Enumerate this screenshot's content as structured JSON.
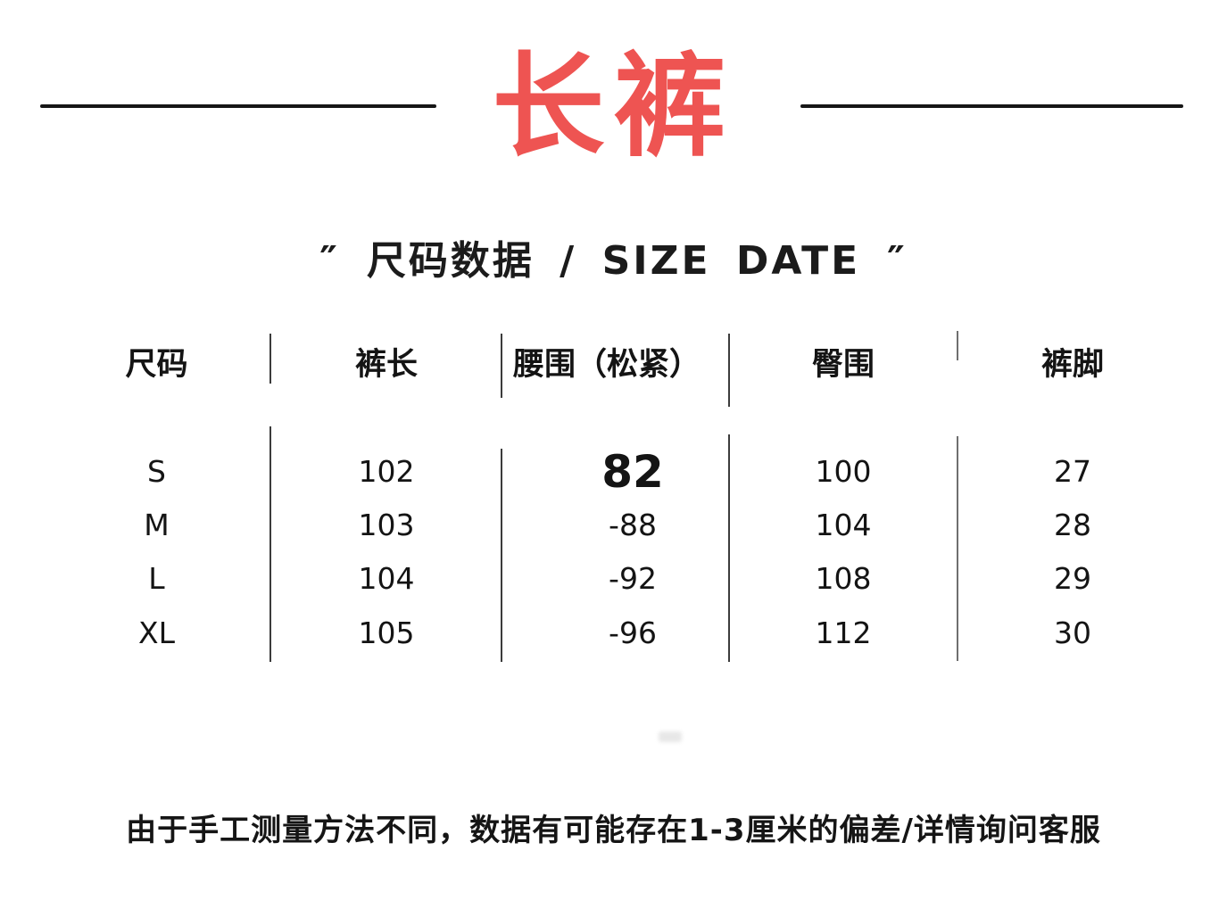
{
  "title": {
    "text": "长裤",
    "color": "#ee5452"
  },
  "subtitle": {
    "open_quote": "″",
    "text": "尺码数据 / SIZE DATE",
    "close_quote": "″"
  },
  "table": {
    "headers": [
      "尺码",
      "裤长",
      "腰围（松紧）",
      "臀围",
      "裤脚"
    ],
    "rows": [
      [
        "S",
        "102",
        "82",
        "100",
        "27"
      ],
      [
        "M",
        "103",
        "-88",
        "104",
        "28"
      ],
      [
        "L",
        "104",
        "-92",
        "108",
        "29"
      ],
      [
        "XL",
        "105",
        "-96",
        "112",
        "30"
      ]
    ]
  },
  "footer": {
    "note": "由于手工测量方法不同，数据有可能存在1-3厘米的偏差/详情询问客服"
  }
}
